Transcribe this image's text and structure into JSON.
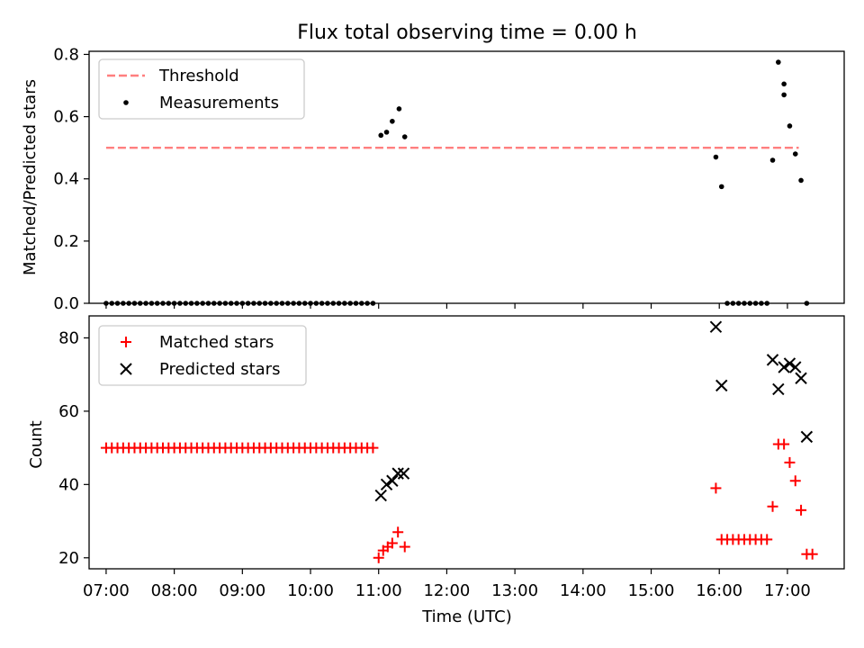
{
  "chart_data": [
    {
      "type": "scatter",
      "title": "Flux total observing time = 0.00 h",
      "xlabel": "",
      "ylabel": "Matched/Predicted stars",
      "xlim": [
        "06:45",
        "17:50"
      ],
      "ylim": [
        0,
        0.81
      ],
      "yticks": [
        "0.0",
        "0.2",
        "0.4",
        "0.6",
        "0.8"
      ],
      "xticks_visible_labels": false,
      "legend_position": "upper-left",
      "series": [
        {
          "name": "Threshold",
          "kind": "line",
          "style": "dashed",
          "color": "#ff7f7f",
          "points": [
            [
              "07:00",
              0.5
            ],
            [
              "17:10",
              0.5
            ]
          ]
        },
        {
          "name": "Measurements",
          "kind": "scatter",
          "marker": "dot",
          "color": "#000000",
          "points": [
            [
              "07:00",
              0
            ],
            [
              "07:05",
              0
            ],
            [
              "07:10",
              0
            ],
            [
              "07:15",
              0
            ],
            [
              "07:20",
              0
            ],
            [
              "07:25",
              0
            ],
            [
              "07:30",
              0
            ],
            [
              "07:35",
              0
            ],
            [
              "07:40",
              0
            ],
            [
              "07:45",
              0
            ],
            [
              "07:50",
              0
            ],
            [
              "07:55",
              0
            ],
            [
              "08:00",
              0
            ],
            [
              "08:05",
              0
            ],
            [
              "08:10",
              0
            ],
            [
              "08:15",
              0
            ],
            [
              "08:20",
              0
            ],
            [
              "08:25",
              0
            ],
            [
              "08:30",
              0
            ],
            [
              "08:35",
              0
            ],
            [
              "08:40",
              0
            ],
            [
              "08:45",
              0
            ],
            [
              "08:50",
              0
            ],
            [
              "08:55",
              0
            ],
            [
              "09:00",
              0
            ],
            [
              "09:05",
              0
            ],
            [
              "09:10",
              0
            ],
            [
              "09:15",
              0
            ],
            [
              "09:20",
              0
            ],
            [
              "09:25",
              0
            ],
            [
              "09:30",
              0
            ],
            [
              "09:35",
              0
            ],
            [
              "09:40",
              0
            ],
            [
              "09:45",
              0
            ],
            [
              "09:50",
              0
            ],
            [
              "09:55",
              0
            ],
            [
              "10:00",
              0
            ],
            [
              "10:05",
              0
            ],
            [
              "10:10",
              0
            ],
            [
              "10:15",
              0
            ],
            [
              "10:20",
              0
            ],
            [
              "10:25",
              0
            ],
            [
              "10:30",
              0
            ],
            [
              "10:35",
              0
            ],
            [
              "10:40",
              0
            ],
            [
              "10:45",
              0
            ],
            [
              "10:50",
              0
            ],
            [
              "10:55",
              0
            ],
            [
              "11:02",
              0.54
            ],
            [
              "11:07",
              0.55
            ],
            [
              "11:12",
              0.585
            ],
            [
              "11:18",
              0.625
            ],
            [
              "11:23",
              0.535
            ],
            [
              "15:57",
              0.47
            ],
            [
              "16:02",
              0.375
            ],
            [
              "16:07",
              0
            ],
            [
              "16:12",
              0
            ],
            [
              "16:17",
              0
            ],
            [
              "16:22",
              0
            ],
            [
              "16:27",
              0
            ],
            [
              "16:32",
              0
            ],
            [
              "16:37",
              0
            ],
            [
              "16:42",
              0
            ],
            [
              "16:47",
              0.46
            ],
            [
              "16:52",
              0.775
            ],
            [
              "16:57",
              0.705
            ],
            [
              "17:02",
              0.57
            ],
            [
              "17:07",
              0.48
            ],
            [
              "17:12",
              0.395
            ],
            [
              "17:17",
              0
            ],
            [
              "16:57",
              0.67
            ]
          ]
        }
      ]
    },
    {
      "type": "scatter",
      "title": "",
      "xlabel": "Time (UTC)",
      "ylabel": "Count",
      "xlim": [
        "06:45",
        "17:50"
      ],
      "ylim": [
        17,
        86
      ],
      "yticks": [
        "20",
        "40",
        "60",
        "80"
      ],
      "xticks": [
        "07:00",
        "08:00",
        "09:00",
        "10:00",
        "11:00",
        "12:00",
        "13:00",
        "14:00",
        "15:00",
        "16:00",
        "17:00"
      ],
      "legend_position": "upper-left",
      "series": [
        {
          "name": "Matched stars",
          "kind": "scatter",
          "marker": "plus",
          "color": "#ff0000",
          "points": [
            [
              "07:00",
              50
            ],
            [
              "07:05",
              50
            ],
            [
              "07:10",
              50
            ],
            [
              "07:15",
              50
            ],
            [
              "07:20",
              50
            ],
            [
              "07:25",
              50
            ],
            [
              "07:30",
              50
            ],
            [
              "07:35",
              50
            ],
            [
              "07:40",
              50
            ],
            [
              "07:45",
              50
            ],
            [
              "07:50",
              50
            ],
            [
              "07:55",
              50
            ],
            [
              "08:00",
              50
            ],
            [
              "08:05",
              50
            ],
            [
              "08:10",
              50
            ],
            [
              "08:15",
              50
            ],
            [
              "08:20",
              50
            ],
            [
              "08:25",
              50
            ],
            [
              "08:30",
              50
            ],
            [
              "08:35",
              50
            ],
            [
              "08:40",
              50
            ],
            [
              "08:45",
              50
            ],
            [
              "08:50",
              50
            ],
            [
              "08:55",
              50
            ],
            [
              "09:00",
              50
            ],
            [
              "09:05",
              50
            ],
            [
              "09:10",
              50
            ],
            [
              "09:15",
              50
            ],
            [
              "09:20",
              50
            ],
            [
              "09:25",
              50
            ],
            [
              "09:30",
              50
            ],
            [
              "09:35",
              50
            ],
            [
              "09:40",
              50
            ],
            [
              "09:45",
              50
            ],
            [
              "09:50",
              50
            ],
            [
              "09:55",
              50
            ],
            [
              "10:00",
              50
            ],
            [
              "10:05",
              50
            ],
            [
              "10:10",
              50
            ],
            [
              "10:15",
              50
            ],
            [
              "10:20",
              50
            ],
            [
              "10:25",
              50
            ],
            [
              "10:30",
              50
            ],
            [
              "10:35",
              50
            ],
            [
              "10:40",
              50
            ],
            [
              "10:45",
              50
            ],
            [
              "10:50",
              50
            ],
            [
              "10:55",
              50
            ],
            [
              "11:00",
              20
            ],
            [
              "11:04",
              22
            ],
            [
              "11:08",
              23
            ],
            [
              "11:12",
              24
            ],
            [
              "11:17",
              27
            ],
            [
              "11:23",
              23
            ],
            [
              "15:57",
              39
            ],
            [
              "16:02",
              25
            ],
            [
              "16:07",
              25
            ],
            [
              "16:12",
              25
            ],
            [
              "16:17",
              25
            ],
            [
              "16:22",
              25
            ],
            [
              "16:27",
              25
            ],
            [
              "16:32",
              25
            ],
            [
              "16:37",
              25
            ],
            [
              "16:42",
              25
            ],
            [
              "16:47",
              34
            ],
            [
              "16:52",
              51
            ],
            [
              "16:57",
              51
            ],
            [
              "17:02",
              46
            ],
            [
              "17:07",
              41
            ],
            [
              "17:12",
              33
            ],
            [
              "17:17",
              21
            ],
            [
              "17:22",
              21
            ]
          ]
        },
        {
          "name": "Predicted stars",
          "kind": "scatter",
          "marker": "x",
          "color": "#000000",
          "points": [
            [
              "11:02",
              37
            ],
            [
              "11:07",
              40
            ],
            [
              "11:12",
              41
            ],
            [
              "11:17",
              43
            ],
            [
              "11:22",
              43
            ],
            [
              "15:57",
              83
            ],
            [
              "16:02",
              67
            ],
            [
              "16:47",
              74
            ],
            [
              "16:52",
              66
            ],
            [
              "16:57",
              72
            ],
            [
              "17:02",
              73
            ],
            [
              "17:07",
              72
            ],
            [
              "17:12",
              69
            ],
            [
              "17:17",
              53
            ]
          ]
        }
      ]
    }
  ]
}
